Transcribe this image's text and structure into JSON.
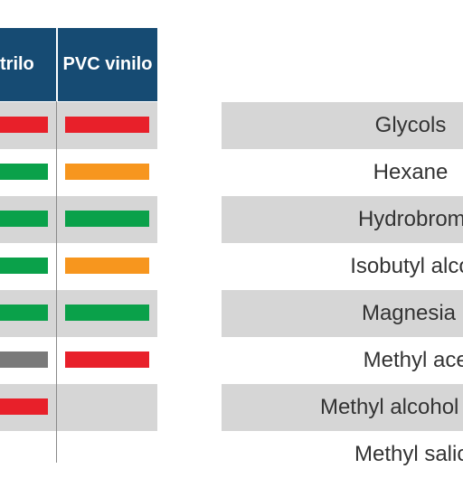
{
  "table": {
    "headers": {
      "nitrilo": "trilo",
      "pvc": "PVC vinilo"
    },
    "colors": {
      "red": "#e8202a",
      "green": "#0aa14a",
      "orange": "#f7961e",
      "gray": "#7a7a7a"
    },
    "rows": [
      {
        "nitrilo": "red",
        "pvc": "red"
      },
      {
        "nitrilo": "green",
        "pvc": "orange"
      },
      {
        "nitrilo": "green",
        "pvc": "green"
      },
      {
        "nitrilo": "green",
        "pvc": "orange"
      },
      {
        "nitrilo": "green",
        "pvc": "green"
      },
      {
        "nitrilo": "gray",
        "pvc": "red"
      },
      {
        "nitrilo": "red",
        "pvc": ""
      }
    ]
  },
  "chemicals": {
    "items": [
      "Glycols",
      "Hexane",
      "Hydrobromic ac",
      "Isobutyl alcohol (Isob",
      "Magnesia",
      "Methyl acetat",
      "Methyl alcohol (or m",
      "Methyl salicyla"
    ]
  }
}
